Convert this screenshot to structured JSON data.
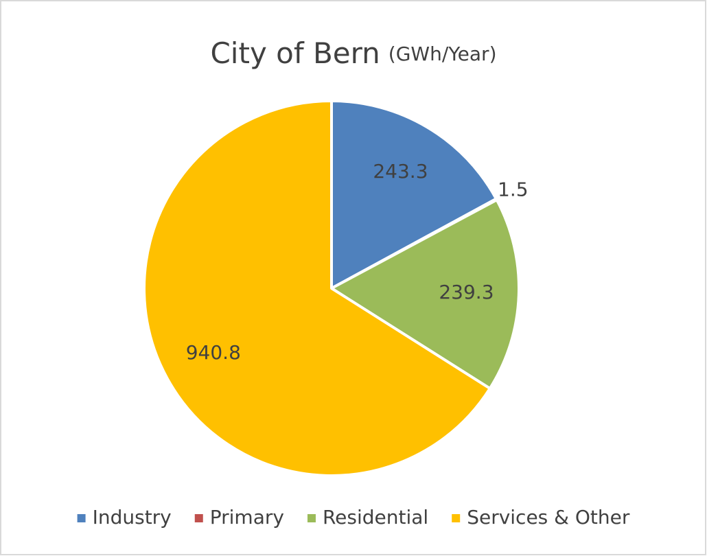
{
  "chart_data": {
    "type": "pie",
    "title": "City of Bern",
    "unit": "(GWh/Year)",
    "categories": [
      "Industry",
      "Primary",
      "Residential",
      "Services & Other"
    ],
    "values": [
      243.3,
      1.5,
      239.3,
      940.8
    ],
    "colors": [
      "#4f81bd",
      "#c0504d",
      "#9bbb59",
      "#ffc000"
    ],
    "legend": "bottom"
  }
}
